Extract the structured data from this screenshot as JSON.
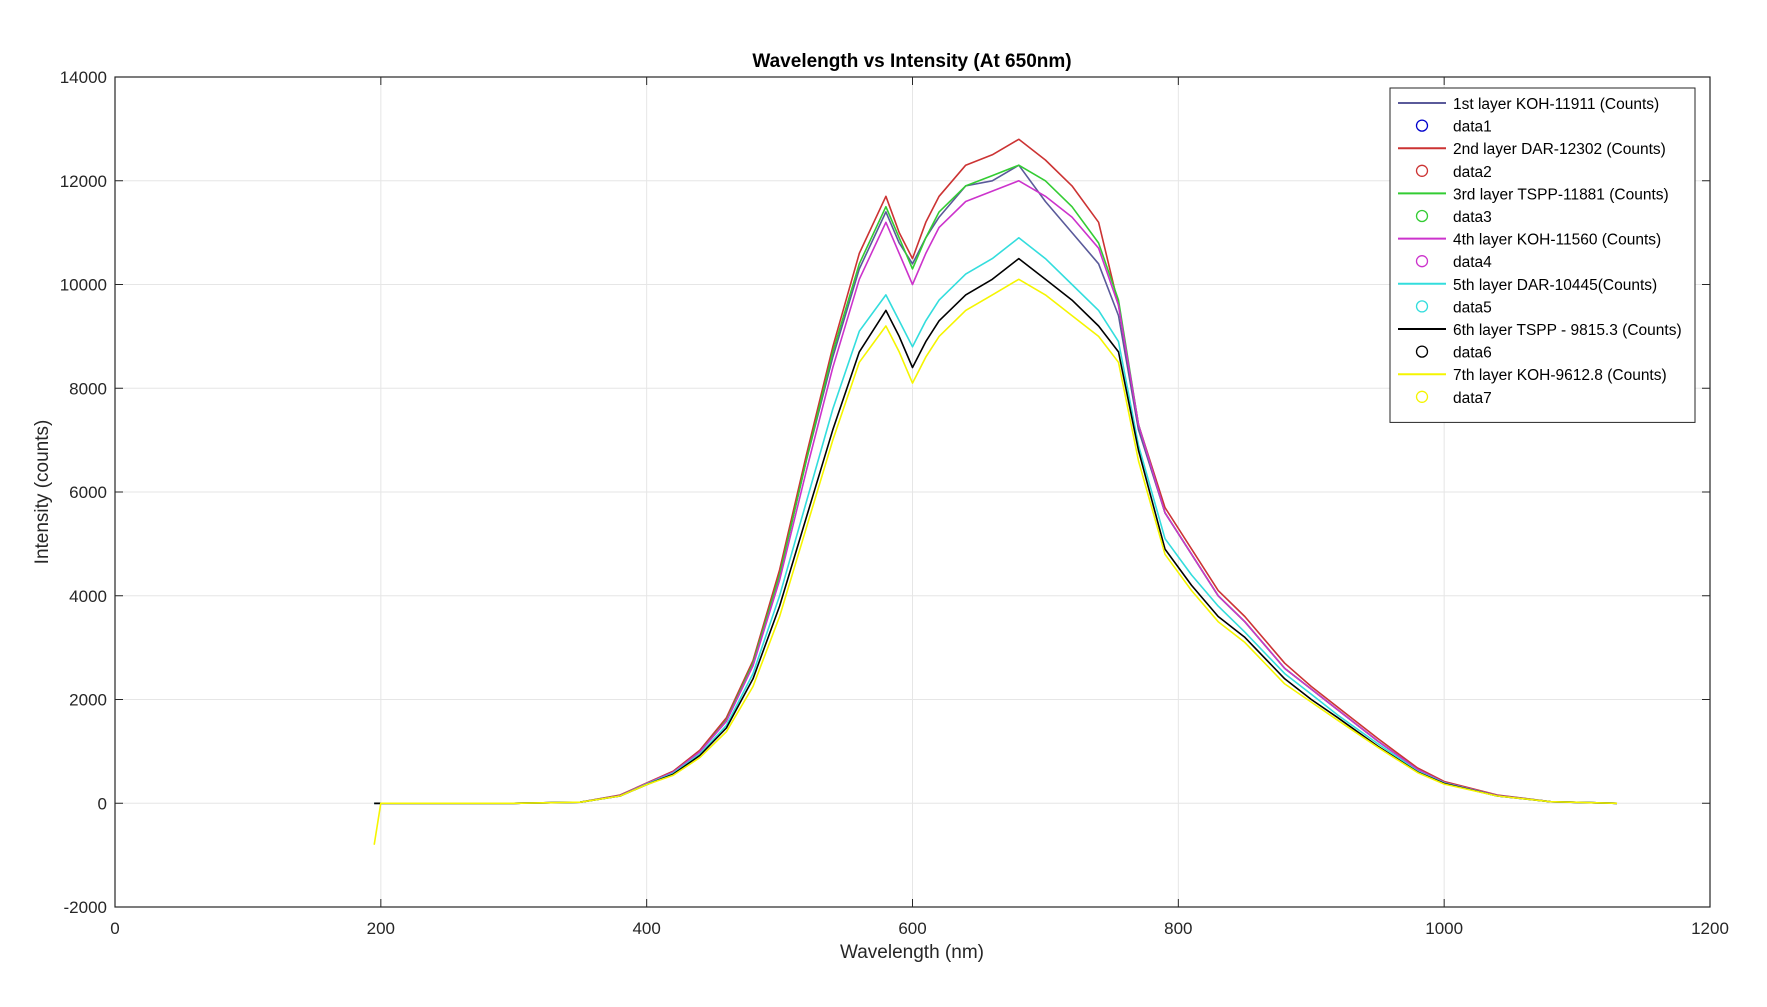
{
  "chart_data": {
    "type": "line",
    "title": "Wavelength vs Intensity (At 650nm)",
    "xlabel": "Wavelength (nm)",
    "ylabel": "Intensity (counts)",
    "xlim": [
      0,
      1200
    ],
    "ylim": [
      -2000,
      14000
    ],
    "xticks": [
      0,
      200,
      400,
      600,
      800,
      1000,
      1200
    ],
    "yticks": [
      -2000,
      0,
      2000,
      4000,
      6000,
      8000,
      10000,
      12000,
      14000
    ],
    "xtick_labels": [
      "0",
      "200",
      "400",
      "600",
      "800",
      "1000",
      "1200"
    ],
    "ytick_labels": [
      "-2000",
      "0",
      "2000",
      "4000",
      "6000",
      "8000",
      "10000",
      "12000",
      "14000"
    ],
    "grid": true,
    "legend_position": "top-right",
    "x_points": [
      195,
      200,
      300,
      350,
      380,
      400,
      420,
      440,
      460,
      480,
      500,
      520,
      540,
      560,
      580,
      590,
      600,
      610,
      620,
      640,
      660,
      680,
      700,
      720,
      740,
      755,
      770,
      790,
      810,
      830,
      850,
      880,
      900,
      920,
      950,
      980,
      1000,
      1040,
      1080,
      1130
    ],
    "series": [
      {
        "name": "1st layer KOH-11911 (Counts)",
        "color": "#5a5a9a",
        "values": [
          0,
          0,
          0,
          20,
          150,
          380,
          600,
          1000,
          1600,
          2700,
          4400,
          6600,
          8600,
          10300,
          11400,
          10800,
          10400,
          10900,
          11300,
          11900,
          12000,
          12300,
          11600,
          11000,
          10400,
          9400,
          7200,
          5600,
          4800,
          4000,
          3500,
          2600,
          2200,
          1800,
          1200,
          650,
          400,
          150,
          30,
          0
        ]
      },
      {
        "name": "data1",
        "color": "#0000cc",
        "marker": "circle"
      },
      {
        "name": "2nd layer DAR-12302 (Counts)",
        "color": "#cc3333",
        "values": [
          0,
          0,
          0,
          20,
          160,
          390,
          620,
          1020,
          1650,
          2750,
          4500,
          6700,
          8800,
          10600,
          11700,
          11000,
          10500,
          11200,
          11700,
          12300,
          12500,
          12800,
          12400,
          11900,
          11200,
          9600,
          7300,
          5700,
          4900,
          4100,
          3600,
          2700,
          2250,
          1850,
          1250,
          680,
          420,
          160,
          30,
          0
        ]
      },
      {
        "name": "data2",
        "color": "#cc3333",
        "marker": "circle"
      },
      {
        "name": "3rd layer TSPP-11881 (Counts)",
        "color": "#33cc33",
        "values": [
          0,
          0,
          0,
          20,
          150,
          380,
          600,
          990,
          1600,
          2700,
          4400,
          6600,
          8700,
          10400,
          11500,
          10900,
          10300,
          10900,
          11400,
          11900,
          12100,
          12300,
          12000,
          11500,
          10800,
          9700,
          7300,
          5600,
          4800,
          4000,
          3500,
          2600,
          2200,
          1800,
          1200,
          650,
          400,
          150,
          30,
          0
        ]
      },
      {
        "name": "data3",
        "color": "#33cc33",
        "marker": "circle"
      },
      {
        "name": "4th layer KOH-11560 (Counts)",
        "color": "#cc33cc",
        "values": [
          0,
          0,
          0,
          20,
          150,
          380,
          600,
          990,
          1580,
          2650,
          4300,
          6400,
          8400,
          10100,
          11200,
          10600,
          10000,
          10600,
          11100,
          11600,
          11800,
          12000,
          11700,
          11300,
          10700,
          9600,
          7300,
          5600,
          4800,
          4000,
          3500,
          2600,
          2200,
          1800,
          1200,
          650,
          400,
          150,
          30,
          0
        ]
      },
      {
        "name": "data4",
        "color": "#cc33cc",
        "marker": "circle"
      },
      {
        "name": "5th layer DAR-10445(Counts)",
        "color": "#33dddd",
        "values": [
          0,
          0,
          0,
          20,
          140,
          370,
          580,
          950,
          1500,
          2500,
          4000,
          5800,
          7600,
          9100,
          9800,
          9300,
          8800,
          9300,
          9700,
          10200,
          10500,
          10900,
          10500,
          10000,
          9500,
          8900,
          6900,
          5100,
          4400,
          3800,
          3300,
          2500,
          2100,
          1700,
          1150,
          620,
          390,
          140,
          30,
          0
        ]
      },
      {
        "name": "data5",
        "color": "#33dddd",
        "marker": "circle"
      },
      {
        "name": "6th layer TSPP - 9815.3 (Counts)",
        "color": "#000000",
        "values": [
          0,
          0,
          0,
          20,
          140,
          360,
          560,
          920,
          1450,
          2400,
          3800,
          5500,
          7200,
          8700,
          9500,
          9000,
          8400,
          8900,
          9300,
          9800,
          10100,
          10500,
          10100,
          9700,
          9200,
          8700,
          6800,
          4900,
          4200,
          3600,
          3200,
          2400,
          2000,
          1650,
          1100,
          600,
          380,
          140,
          30,
          0
        ]
      },
      {
        "name": "data6",
        "color": "#000000",
        "marker": "circle"
      },
      {
        "name": "7th layer KOH-9612.8 (Counts)",
        "color": "#f5f500",
        "values": [
          -800,
          0,
          0,
          20,
          140,
          360,
          540,
          880,
          1380,
          2250,
          3600,
          5300,
          7000,
          8500,
          9200,
          8700,
          8100,
          8600,
          9000,
          9500,
          9800,
          10100,
          9800,
          9400,
          9000,
          8500,
          6600,
          4800,
          4100,
          3500,
          3100,
          2300,
          1950,
          1600,
          1080,
          590,
          370,
          140,
          30,
          0
        ]
      },
      {
        "name": "data7",
        "color": "#f5f500",
        "marker": "circle"
      }
    ]
  }
}
